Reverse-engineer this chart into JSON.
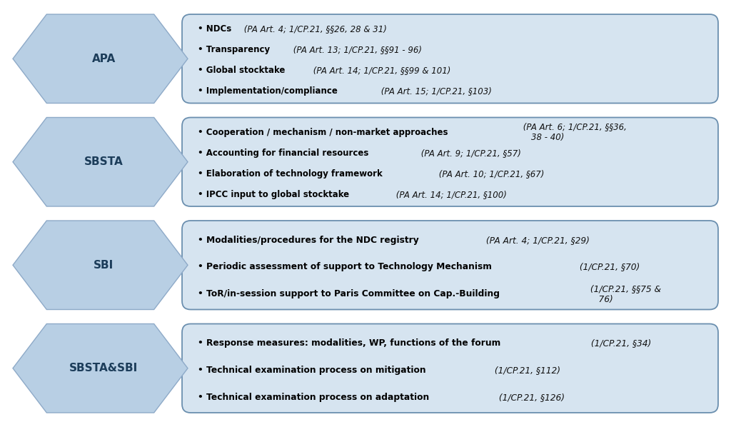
{
  "background_color": "#ffffff",
  "arrow_fill_color": "#b8cfe4",
  "arrow_edge_color": "#8eaac8",
  "box_fill_color": "#d6e4f0",
  "box_edge_color": "#6b8faf",
  "rows": [
    {
      "label": "APA",
      "bullets": [
        {
          "bold": "• NDCs",
          "italic": " (PA Art. 4; 1/CP.21, §§26, 28 & 31)"
        },
        {
          "bold": "• Transparency",
          "italic": " (PA Art. 13; 1/CP.21, §§91 - 96)"
        },
        {
          "bold": "• Global stocktake",
          "italic": " (PA Art. 14; 1/CP.21, §§99 & 101)"
        },
        {
          "bold": "• Implementation/compliance",
          "italic": " (PA Art. 15; 1/CP.21, §103)"
        }
      ]
    },
    {
      "label": "SBSTA",
      "bullets": [
        {
          "bold": "• Cooperation / mechanism / non-market approaches",
          "italic": " (PA Art. 6; 1/CP.21, §§36,\n    38 - 40)"
        },
        {
          "bold": "• Accounting for financial resources",
          "italic": " (PA Art. 9; 1/CP.21, §57)"
        },
        {
          "bold": "• Elaboration of technology framework",
          "italic": " (PA Art. 10; 1/CP.21, §67)"
        },
        {
          "bold": "• IPCC input to global stocktake",
          "italic": " (PA Art. 14; 1/CP.21, §100)"
        }
      ]
    },
    {
      "label": "SBI",
      "bullets": [
        {
          "bold": "• Modalities/procedures for the NDC registry",
          "italic": " (PA Art. 4; 1/CP.21, §29)"
        },
        {
          "bold": "• Periodic assessment of support to Technology Mechanism",
          "italic": " (1/CP.21, §70)"
        },
        {
          "bold": "• ToR/in-session support to Paris Committee on Cap.-Building",
          "italic": " (1/CP.21, §§75 &\n    76)"
        }
      ]
    },
    {
      "label": "SBSTA&SBI",
      "bullets": [
        {
          "bold": "• Response measures: modalities, WP, functions of the forum",
          "italic": " (1/CP.21, §34)"
        },
        {
          "bold": "• Technical examination process on mitigation",
          "italic": " (1/CP.21, §112)"
        },
        {
          "bold": "• Technical examination process on adaptation",
          "italic": " (1/CP.21, §126)"
        }
      ]
    }
  ],
  "arrow_label_fontsize": 11,
  "bullet_fontsize_4": 8.5,
  "bullet_fontsize_3": 8.8
}
